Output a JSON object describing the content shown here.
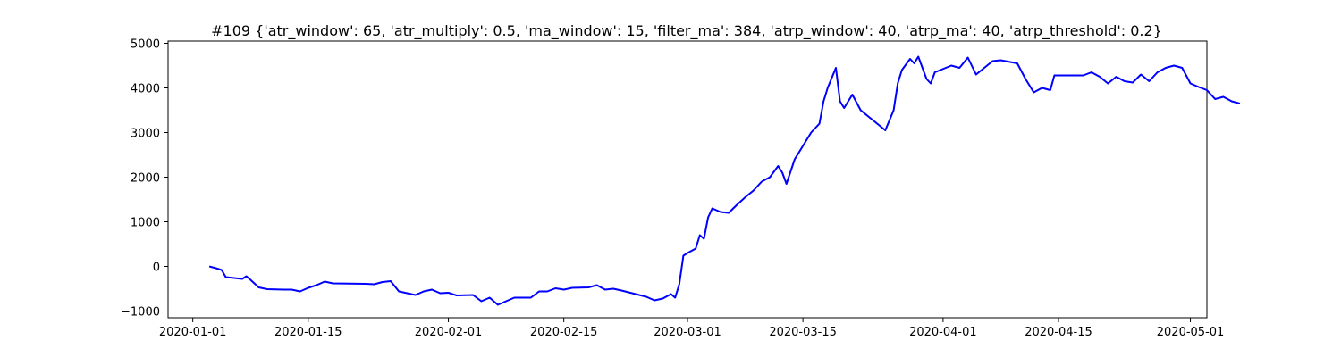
{
  "chart_data": {
    "type": "line",
    "title": "#109 {'atr_window': 65, 'atr_multiply': 0.5, 'ma_window': 15, 'filter_ma': 384, 'atrp_window': 40, 'atrp_ma': 40, 'atrp_threshold': 0.2}",
    "xlabel": "",
    "ylabel": "",
    "x_type": "date",
    "xlim": [
      "2019-12-29",
      "2020-05-03"
    ],
    "ylim": [
      -1150,
      5050
    ],
    "x_ticks": [
      "2020-01-01",
      "2020-01-15",
      "2020-02-01",
      "2020-02-15",
      "2020-03-01",
      "2020-03-15",
      "2020-04-01",
      "2020-04-15",
      "2020-05-01"
    ],
    "y_ticks": [
      -1000,
      0,
      1000,
      2000,
      3000,
      4000,
      5000
    ],
    "grid": false,
    "series": [
      {
        "color": "#0000ff",
        "points": [
          [
            "2020-01-03",
            0
          ],
          [
            "2020-01-04",
            -50
          ],
          [
            "2020-01-04",
            -80
          ],
          [
            "2020-01-05",
            -240
          ],
          [
            "2020-01-07",
            -280
          ],
          [
            "2020-01-07",
            -220
          ],
          [
            "2020-01-08",
            -300
          ],
          [
            "2020-01-09",
            -470
          ],
          [
            "2020-01-10",
            -510
          ],
          [
            "2020-01-12",
            -520
          ],
          [
            "2020-01-13",
            -520
          ],
          [
            "2020-01-14",
            -560
          ],
          [
            "2020-01-15",
            -480
          ],
          [
            "2020-01-16",
            -420
          ],
          [
            "2020-01-17",
            -340
          ],
          [
            "2020-01-18",
            -380
          ],
          [
            "2020-01-22",
            -390
          ],
          [
            "2020-01-23",
            -400
          ],
          [
            "2020-01-24",
            -350
          ],
          [
            "2020-01-25",
            -330
          ],
          [
            "2020-01-26",
            -560
          ],
          [
            "2020-01-28",
            -640
          ],
          [
            "2020-01-29",
            -560
          ],
          [
            "2020-01-30",
            -520
          ],
          [
            "2020-01-31",
            -600
          ],
          [
            "2020-02-01",
            -590
          ],
          [
            "2020-02-02",
            -650
          ],
          [
            "2020-02-04",
            -640
          ],
          [
            "2020-02-05",
            -780
          ],
          [
            "2020-02-06",
            -700
          ],
          [
            "2020-02-07",
            -860
          ],
          [
            "2020-02-08",
            -780
          ],
          [
            "2020-02-09",
            -700
          ],
          [
            "2020-02-11",
            -700
          ],
          [
            "2020-02-12",
            -560
          ],
          [
            "2020-02-13",
            -560
          ],
          [
            "2020-02-14",
            -490
          ],
          [
            "2020-02-15",
            -520
          ],
          [
            "2020-02-16",
            -480
          ],
          [
            "2020-02-18",
            -470
          ],
          [
            "2020-02-19",
            -420
          ],
          [
            "2020-02-20",
            -520
          ],
          [
            "2020-02-21",
            -500
          ],
          [
            "2020-02-22",
            -540
          ],
          [
            "2020-02-25",
            -680
          ],
          [
            "2020-02-26",
            -760
          ],
          [
            "2020-02-27",
            -720
          ],
          [
            "2020-02-28",
            -620
          ],
          [
            "2020-02-28",
            -700
          ],
          [
            "2020-02-29",
            -400
          ],
          [
            "2020-02-29",
            240
          ],
          [
            "2020-03-01",
            300
          ],
          [
            "2020-03-02",
            400
          ],
          [
            "2020-03-02",
            700
          ],
          [
            "2020-03-03",
            620
          ],
          [
            "2020-03-03",
            1100
          ],
          [
            "2020-03-04",
            1300
          ],
          [
            "2020-03-05",
            1220
          ],
          [
            "2020-03-06",
            1200
          ],
          [
            "2020-03-07",
            1380
          ],
          [
            "2020-03-08",
            1550
          ],
          [
            "2020-03-09",
            1700
          ],
          [
            "2020-03-10",
            1900
          ],
          [
            "2020-03-11",
            2000
          ],
          [
            "2020-03-12",
            2250
          ],
          [
            "2020-03-12",
            2100
          ],
          [
            "2020-03-13",
            1850
          ],
          [
            "2020-03-14",
            2400
          ],
          [
            "2020-03-16",
            3000
          ],
          [
            "2020-03-17",
            3200
          ],
          [
            "2020-03-17",
            3700
          ],
          [
            "2020-03-18",
            4000
          ],
          [
            "2020-03-19",
            4450
          ],
          [
            "2020-03-19",
            3700
          ],
          [
            "2020-03-20",
            3550
          ],
          [
            "2020-03-21",
            3850
          ],
          [
            "2020-03-22",
            3500
          ],
          [
            "2020-03-25",
            3050
          ],
          [
            "2020-03-26",
            3500
          ],
          [
            "2020-03-26",
            4100
          ],
          [
            "2020-03-27",
            4400
          ],
          [
            "2020-03-28",
            4650
          ],
          [
            "2020-03-28",
            4550
          ],
          [
            "2020-03-29",
            4700
          ],
          [
            "2020-03-30",
            4200
          ],
          [
            "2020-03-30",
            4100
          ],
          [
            "2020-03-31",
            4350
          ],
          [
            "2020-04-02",
            4500
          ],
          [
            "2020-04-03",
            4450
          ],
          [
            "2020-04-04",
            4680
          ],
          [
            "2020-04-05",
            4300
          ],
          [
            "2020-04-06",
            4450
          ],
          [
            "2020-04-07",
            4600
          ],
          [
            "2020-04-08",
            4620
          ],
          [
            "2020-04-10",
            4550
          ],
          [
            "2020-04-11",
            4200
          ],
          [
            "2020-04-12",
            3900
          ],
          [
            "2020-04-13",
            4000
          ],
          [
            "2020-04-14",
            3950
          ],
          [
            "2020-04-14",
            4280
          ],
          [
            "2020-04-18",
            4280
          ],
          [
            "2020-04-19",
            4350
          ],
          [
            "2020-04-20",
            4250
          ],
          [
            "2020-04-21",
            4100
          ],
          [
            "2020-04-22",
            4250
          ],
          [
            "2020-04-23",
            4150
          ],
          [
            "2020-04-24",
            4120
          ],
          [
            "2020-04-25",
            4300
          ],
          [
            "2020-04-26",
            4150
          ],
          [
            "2020-04-27",
            4350
          ],
          [
            "2020-04-28",
            4450
          ],
          [
            "2020-04-29",
            4500
          ],
          [
            "2020-04-30",
            4450
          ],
          [
            "2020-05-01",
            4100
          ],
          [
            "2020-05-02",
            4020
          ],
          [
            "2020-05-03",
            3950
          ],
          [
            "2020-05-04",
            3750
          ],
          [
            "2020-05-05",
            3800
          ],
          [
            "2020-05-06",
            3700
          ],
          [
            "2020-05-07",
            3650
          ]
        ]
      }
    ]
  }
}
